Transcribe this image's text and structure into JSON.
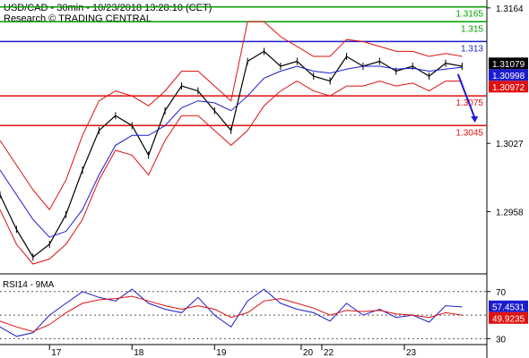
{
  "header": {
    "title": "USD/CAD - 30min - 10/23/2018 13:28:10 (CET)",
    "research": "Research © TRADING CENTRAL"
  },
  "chart_data": [
    {
      "type": "line",
      "title": "USD/CAD - 30min - 10/23/2018 13:28:10 (CET)",
      "subtitle": "Research © TRADING CENTRAL",
      "ylim": [
        1.2895,
        1.3172
      ],
      "y_ticks": [
        "1.3164",
        "1.3027",
        "1.2958"
      ],
      "y_tick_values": [
        1.3164,
        1.3027,
        1.2958
      ],
      "x_ticks": [
        "17",
        "18",
        "19",
        "20",
        "22",
        "23"
      ],
      "x_tick_positions": [
        1,
        11,
        21,
        31.5,
        34,
        44
      ],
      "x_range": [
        -5,
        54
      ],
      "grid": false,
      "levels": [
        {
          "label": "1.3165",
          "value": 1.3165,
          "color": "#00a000"
        },
        {
          "label": "1.315",
          "value": 1.315,
          "color": "#00a000"
        },
        {
          "label": "1.313",
          "value": 1.313,
          "color": "#1c1ccf"
        },
        {
          "label": "1.3075",
          "value": 1.3075,
          "color": "#e01010"
        },
        {
          "label": "1.3045",
          "value": 1.3045,
          "color": "#e01010"
        }
      ],
      "price_badges": [
        {
          "label": "1.31079",
          "value": 1.31079,
          "bg": "#000000",
          "fg": "#ffffff"
        },
        {
          "label": "1.30998",
          "value": 1.30998,
          "bg": "#1c1ccf",
          "fg": "#ffffff"
        },
        {
          "label": "1.30972",
          "value": 1.30972,
          "bg": "#e01010",
          "fg": "#ffffff"
        }
      ],
      "x": [
        -5,
        -3,
        -1,
        1,
        3,
        5,
        7,
        9,
        11,
        13,
        15,
        17,
        19,
        21,
        23,
        25,
        27,
        29,
        31,
        33,
        35,
        37,
        39,
        41,
        43,
        45,
        47,
        49,
        51
      ],
      "series": [
        {
          "role": "price",
          "color": "#000000",
          "values": [
            1.2975,
            1.294,
            1.2912,
            1.2925,
            1.2955,
            1.3,
            1.304,
            1.3055,
            1.3045,
            1.3015,
            1.306,
            1.3085,
            1.308,
            1.306,
            1.304,
            1.311,
            1.312,
            1.3105,
            1.311,
            1.3095,
            1.309,
            1.3115,
            1.3105,
            1.311,
            1.31,
            1.3105,
            1.3095,
            1.3108,
            1.3105
          ]
        },
        {
          "role": "moving-average",
          "color": "#1c1ccf",
          "values": [
            1.3,
            1.2975,
            1.295,
            1.2932,
            1.2938,
            1.296,
            1.2995,
            1.3025,
            1.3035,
            1.3035,
            1.3045,
            1.3063,
            1.307,
            1.3068,
            1.306,
            1.3075,
            1.3093,
            1.31,
            1.3105,
            1.31,
            1.3098,
            1.3102,
            1.3105,
            1.3105,
            1.3102,
            1.3103,
            1.31,
            1.3102,
            1.3104
          ]
        },
        {
          "role": "upper-band",
          "color": "#e01010",
          "values": [
            1.303,
            1.3005,
            1.298,
            1.296,
            1.299,
            1.3035,
            1.307,
            1.308,
            1.3075,
            1.3065,
            1.308,
            1.31,
            1.31,
            1.3085,
            1.307,
            1.315,
            1.315,
            1.3135,
            1.3125,
            1.3115,
            1.3115,
            1.3132,
            1.313,
            1.3125,
            1.312,
            1.312,
            1.3115,
            1.3118,
            1.3115
          ]
        },
        {
          "role": "lower-band",
          "color": "#e01010",
          "values": [
            1.296,
            1.2925,
            1.2905,
            1.291,
            1.2925,
            1.295,
            1.299,
            1.302,
            1.3015,
            1.2995,
            1.303,
            1.3055,
            1.3055,
            1.304,
            1.3025,
            1.304,
            1.3065,
            1.308,
            1.309,
            1.308,
            1.3075,
            1.3085,
            1.3085,
            1.309,
            1.3085,
            1.3088,
            1.308,
            1.309,
            1.309
          ]
        }
      ],
      "forecast_arrow": {
        "color": "#1c1ccf",
        "from": [
          50.5,
          1.3097
        ],
        "to": [
          52.5,
          1.3048
        ]
      }
    },
    {
      "type": "line",
      "title": "RSI14 - 9MA",
      "ylim": [
        25,
        85
      ],
      "y_ticks": [
        "70",
        "30"
      ],
      "y_tick_values": [
        70,
        30
      ],
      "x_range": [
        -5,
        54
      ],
      "dotted_levels": [
        70,
        50,
        30
      ],
      "price_badges": [
        {
          "label": "57.4531",
          "value": 57.4531,
          "bg": "#1c1ccf",
          "fg": "#ffffff"
        },
        {
          "label": "49.9235",
          "value": 49.9235,
          "bg": "#e01010",
          "fg": "#ffffff"
        }
      ],
      "x": [
        -5,
        -3,
        -1,
        1,
        3,
        5,
        7,
        9,
        11,
        13,
        15,
        17,
        19,
        21,
        23,
        25,
        27,
        29,
        31,
        33,
        35,
        37,
        39,
        41,
        43,
        45,
        47,
        49,
        51
      ],
      "series": [
        {
          "role": "rsi",
          "color": "#1c1ccf",
          "values": [
            40,
            32,
            35,
            50,
            60,
            70,
            65,
            62,
            72,
            60,
            55,
            52,
            65,
            50,
            40,
            62,
            72,
            60,
            55,
            52,
            45,
            60,
            50,
            55,
            48,
            50,
            44,
            58,
            57
          ]
        },
        {
          "role": "rsi-ma",
          "color": "#e01010",
          "values": [
            45,
            40,
            36,
            42,
            52,
            60,
            63,
            64,
            66,
            62,
            58,
            55,
            58,
            55,
            48,
            52,
            62,
            64,
            60,
            56,
            50,
            54,
            53,
            54,
            51,
            50,
            48,
            52,
            50
          ]
        }
      ]
    }
  ]
}
